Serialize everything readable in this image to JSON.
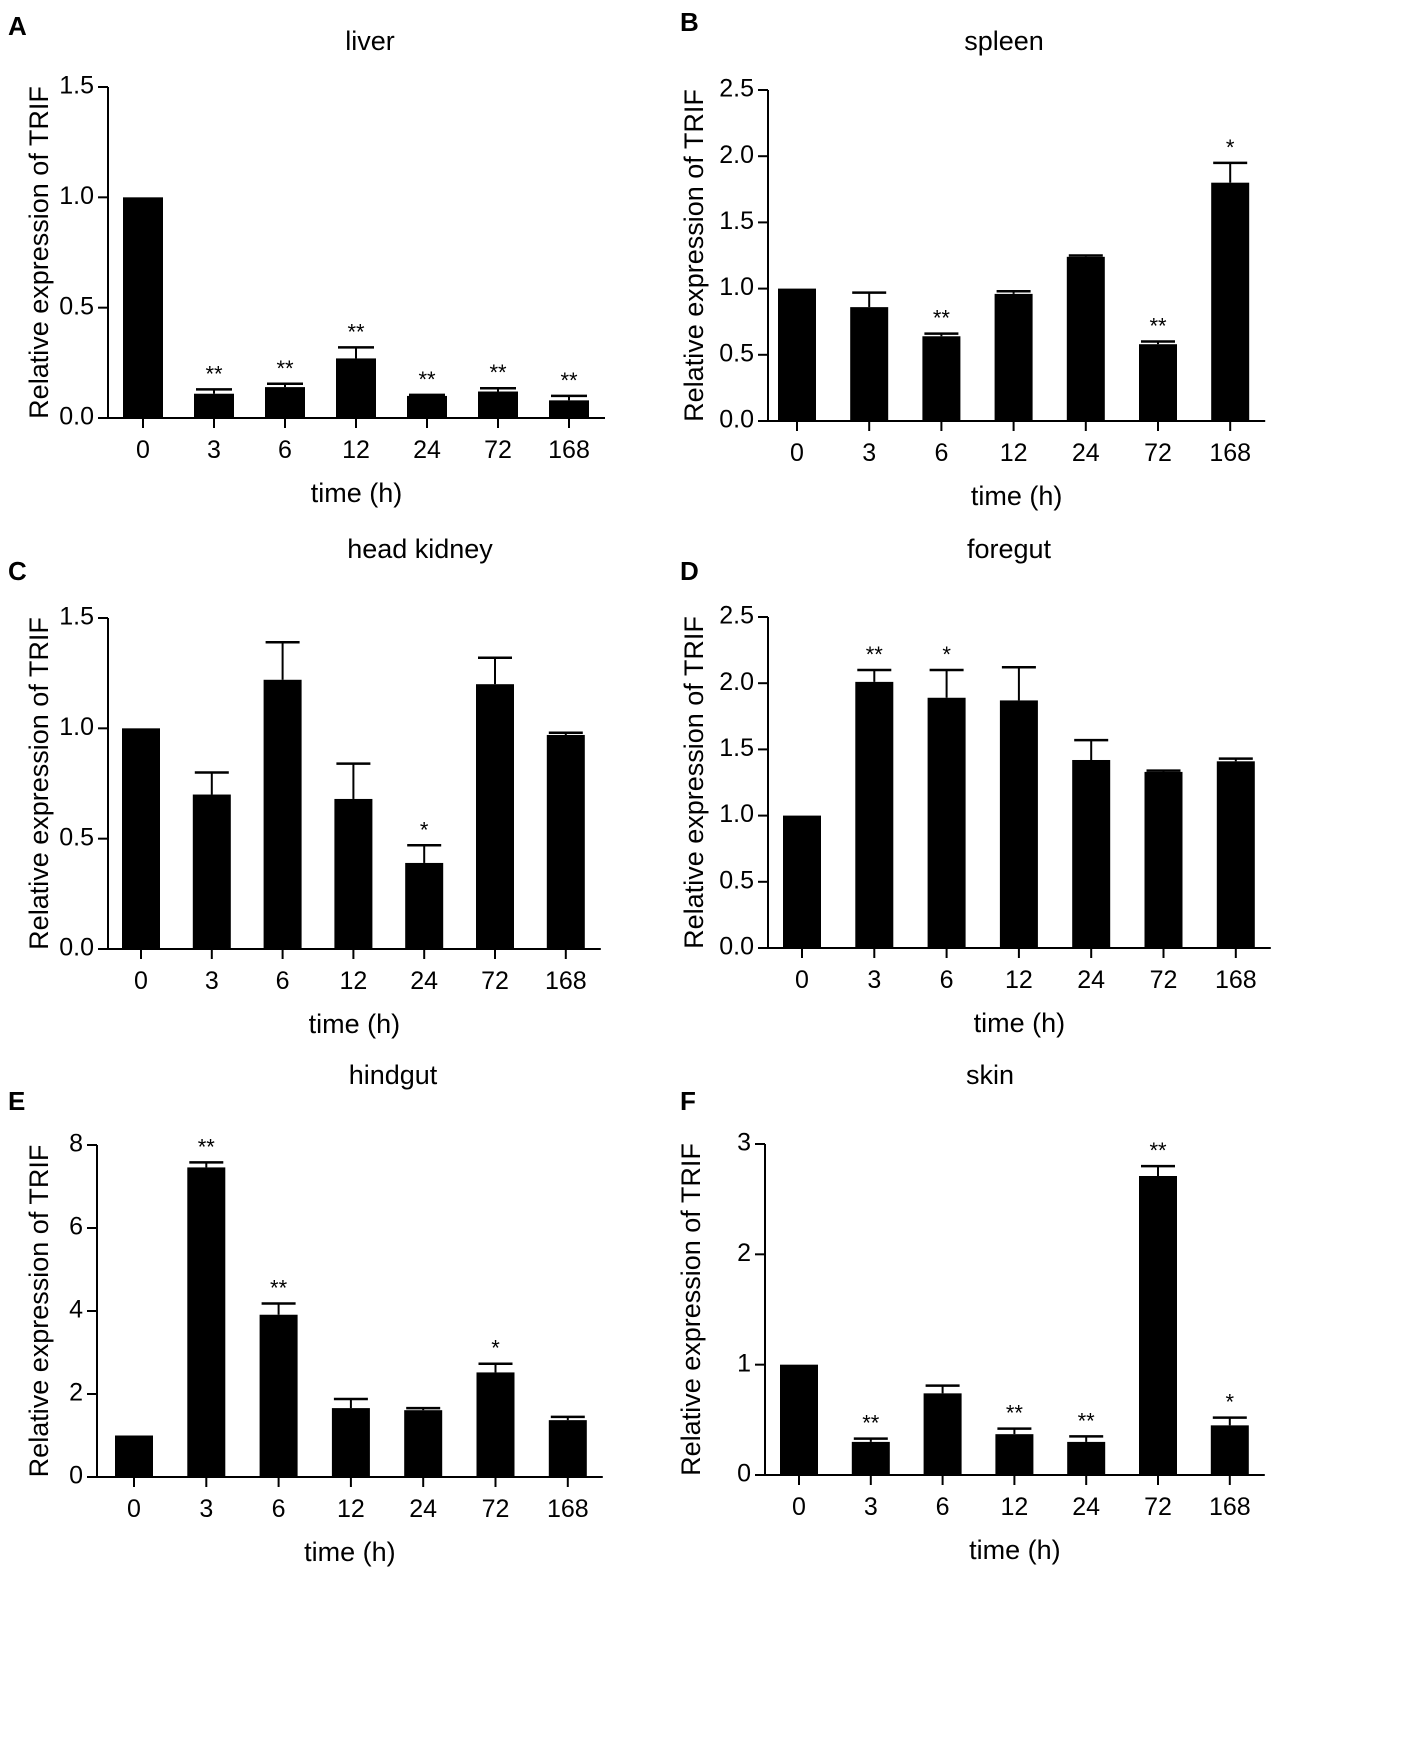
{
  "chart_data": [
    {
      "panel": "A",
      "type": "bar",
      "title": "liver",
      "categories": [
        "0",
        "3",
        "6",
        "12",
        "24",
        "72",
        "168"
      ],
      "values": [
        1.0,
        0.11,
        0.14,
        0.27,
        0.1,
        0.12,
        0.08
      ],
      "errors": [
        0,
        0.02,
        0.015,
        0.05,
        0.005,
        0.015,
        0.02
      ],
      "significance": [
        "",
        "**",
        "**",
        "**",
        "**",
        "**",
        "**"
      ],
      "xlabel": "time (h)",
      "ylabel": "Relative expression of TRIF",
      "ylim": [
        0,
        1.5
      ],
      "yticks": [
        "0.0",
        "0.5",
        "1.0",
        "1.5"
      ],
      "color": "#000000"
    },
    {
      "panel": "B",
      "type": "bar",
      "title": "spleen",
      "categories": [
        "0",
        "3",
        "6",
        "12",
        "24",
        "72",
        "168"
      ],
      "values": [
        1.0,
        0.86,
        0.64,
        0.96,
        1.24,
        0.58,
        1.8
      ],
      "errors": [
        0,
        0.11,
        0.02,
        0.02,
        0.01,
        0.02,
        0.15
      ],
      "significance": [
        "",
        "",
        "**",
        "",
        "",
        "**",
        "*"
      ],
      "xlabel": "time (h)",
      "ylabel": "Relative expression of TRIF",
      "ylim": [
        0,
        2.5
      ],
      "yticks": [
        "0.0",
        "0.5",
        "1.0",
        "1.5",
        "2.0",
        "2.5"
      ],
      "color": "#000000"
    },
    {
      "panel": "C",
      "type": "bar",
      "title": "head kidney",
      "categories": [
        "0",
        "3",
        "6",
        "12",
        "24",
        "72",
        "168"
      ],
      "values": [
        1.0,
        0.7,
        1.22,
        0.68,
        0.39,
        1.2,
        0.97
      ],
      "errors": [
        0,
        0.1,
        0.17,
        0.16,
        0.08,
        0.12,
        0.01
      ],
      "significance": [
        "",
        "",
        "",
        "",
        "*",
        "",
        ""
      ],
      "xlabel": "time (h)",
      "ylabel": "Relative expression of TRIF",
      "ylim": [
        0,
        1.5
      ],
      "yticks": [
        "0.0",
        "0.5",
        "1.0",
        "1.5"
      ],
      "color": "#000000"
    },
    {
      "panel": "D",
      "type": "bar",
      "title": "foregut",
      "categories": [
        "0",
        "3",
        "6",
        "12",
        "24",
        "72",
        "168"
      ],
      "values": [
        1.0,
        2.01,
        1.89,
        1.87,
        1.42,
        1.33,
        1.41
      ],
      "errors": [
        0,
        0.09,
        0.21,
        0.25,
        0.15,
        0.01,
        0.02
      ],
      "significance": [
        "",
        "**",
        "*",
        "",
        "",
        "",
        ""
      ],
      "xlabel": "time (h)",
      "ylabel": "Relative expression of TRIF",
      "ylim": [
        0,
        2.5
      ],
      "yticks": [
        "0.0",
        "0.5",
        "1.0",
        "1.5",
        "2.0",
        "2.5"
      ],
      "color": "#000000"
    },
    {
      "panel": "E",
      "type": "bar",
      "title": "hindgut",
      "categories": [
        "0",
        "3",
        "6",
        "12",
        "24",
        "72",
        "168"
      ],
      "values": [
        1.0,
        7.46,
        3.91,
        1.66,
        1.61,
        2.52,
        1.37
      ],
      "errors": [
        0,
        0.12,
        0.27,
        0.22,
        0.05,
        0.21,
        0.08
      ],
      "significance": [
        "",
        "**",
        "**",
        "",
        "",
        "*",
        ""
      ],
      "xlabel": "time (h)",
      "ylabel": "Relative expression of TRIF",
      "ylim": [
        0,
        8
      ],
      "yticks": [
        "0",
        "2",
        "4",
        "6",
        "8"
      ],
      "color": "#000000"
    },
    {
      "panel": "F",
      "type": "bar",
      "title": "skin",
      "categories": [
        "0",
        "3",
        "6",
        "12",
        "24",
        "72",
        "168"
      ],
      "values": [
        1.0,
        0.3,
        0.74,
        0.37,
        0.3,
        2.71,
        0.45
      ],
      "errors": [
        0,
        0.03,
        0.07,
        0.05,
        0.05,
        0.09,
        0.07
      ],
      "significance": [
        "",
        "**",
        "",
        "**",
        "**",
        "**",
        "*"
      ],
      "xlabel": "time (h)",
      "ylabel": "Relative expression of TRIF",
      "ylim": [
        0,
        3
      ],
      "yticks": [
        "0",
        "1",
        "2",
        "3"
      ],
      "color": "#000000"
    }
  ]
}
